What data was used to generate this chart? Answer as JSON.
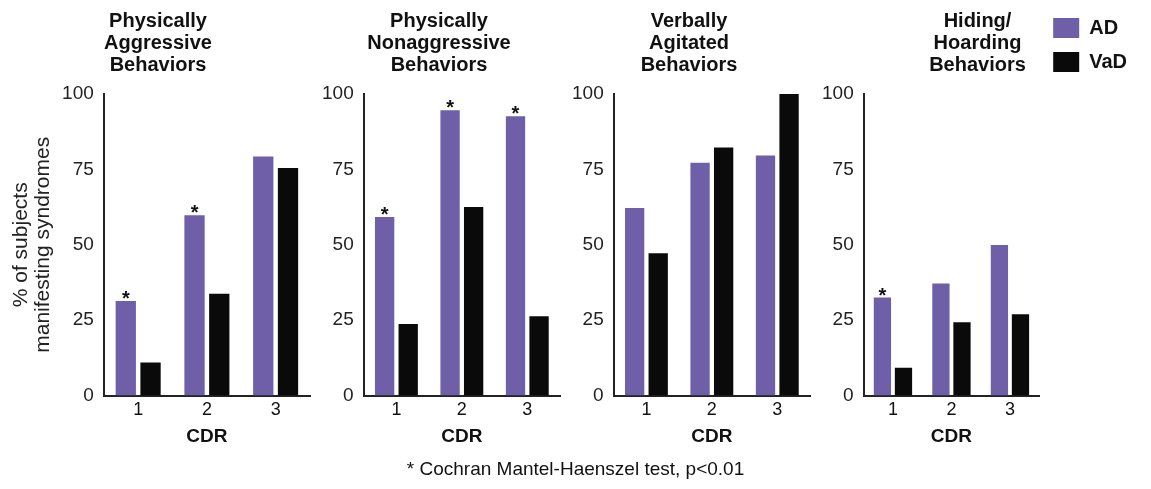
{
  "chart_data": [
    {
      "type": "bar",
      "title": "Physically Aggressive Behaviors",
      "xlabel": "CDR",
      "ylabel": "% of subjects manifesting syndromes",
      "categories": [
        "1",
        "2",
        "3"
      ],
      "series": [
        {
          "color": "#6e5fa8",
          "values": [
            31.4,
            59.8,
            79.3
          ]
        },
        {
          "color": "#0a0a0a",
          "values": [
            11,
            33.8,
            75.5
          ]
        }
      ],
      "ylim": [
        0,
        100
      ],
      "yticks": [
        0,
        25,
        50,
        75,
        100
      ],
      "annotations": [
        {
          "text": "*",
          "x": "1",
          "y": 31.4
        },
        {
          "text": "*",
          "x": "2",
          "y": 59.8
        },
        "* Cochran Mantel-Haenszel test, p<0.01"
      ]
    },
    {
      "type": "bar",
      "title": "Physically Nonaggressive Behaviors",
      "xlabel": "CDR",
      "categories": [
        "1",
        "2",
        "3"
      ],
      "series": [
        {
          "color": "#6e5fa8",
          "values": [
            59.2,
            94.6,
            92.6
          ]
        },
        {
          "color": "#0a0a0a",
          "values": [
            23.7,
            62.5,
            26.3
          ]
        }
      ],
      "ylim": [
        0,
        100
      ],
      "yticks": [
        0,
        25,
        50,
        75,
        100
      ],
      "annotations": [
        {
          "text": "*",
          "x": "1",
          "y": 59.2
        },
        {
          "text": "*",
          "x": "2",
          "y": 94.6
        },
        {
          "text": "*",
          "x": "3",
          "y": 92.6
        }
      ]
    },
    {
      "type": "bar",
      "title": "Verbally Agitated Behaviors",
      "xlabel": "CDR",
      "categories": [
        "1",
        "2",
        "3"
      ],
      "series": [
        {
          "color": "#6e5fa8",
          "values": [
            62.2,
            77.2,
            79.6
          ]
        },
        {
          "color": "#0a0a0a",
          "values": [
            47.2,
            82.3,
            100
          ]
        }
      ],
      "ylim": [
        0,
        100
      ],
      "yticks": [
        0,
        25,
        50,
        75,
        100
      ]
    },
    {
      "type": "bar",
      "title": "Hiding/ Hoarding Behaviors",
      "xlabel": "CDR",
      "categories": [
        "1",
        "2",
        "3"
      ],
      "series": [
        {
          "name": "AD",
          "color": "#6e5fa8",
          "values": [
            32.5,
            37.2,
            49.9
          ]
        },
        {
          "name": "VaD",
          "color": "#0a0a0a",
          "values": [
            9.2,
            24.3,
            27
          ]
        }
      ],
      "ylim": [
        0,
        100
      ],
      "yticks": [
        0,
        25,
        50,
        75,
        100
      ],
      "legend": "right",
      "annotations": [
        {
          "text": "*",
          "x": "1",
          "y": 32.5
        }
      ]
    }
  ]
}
